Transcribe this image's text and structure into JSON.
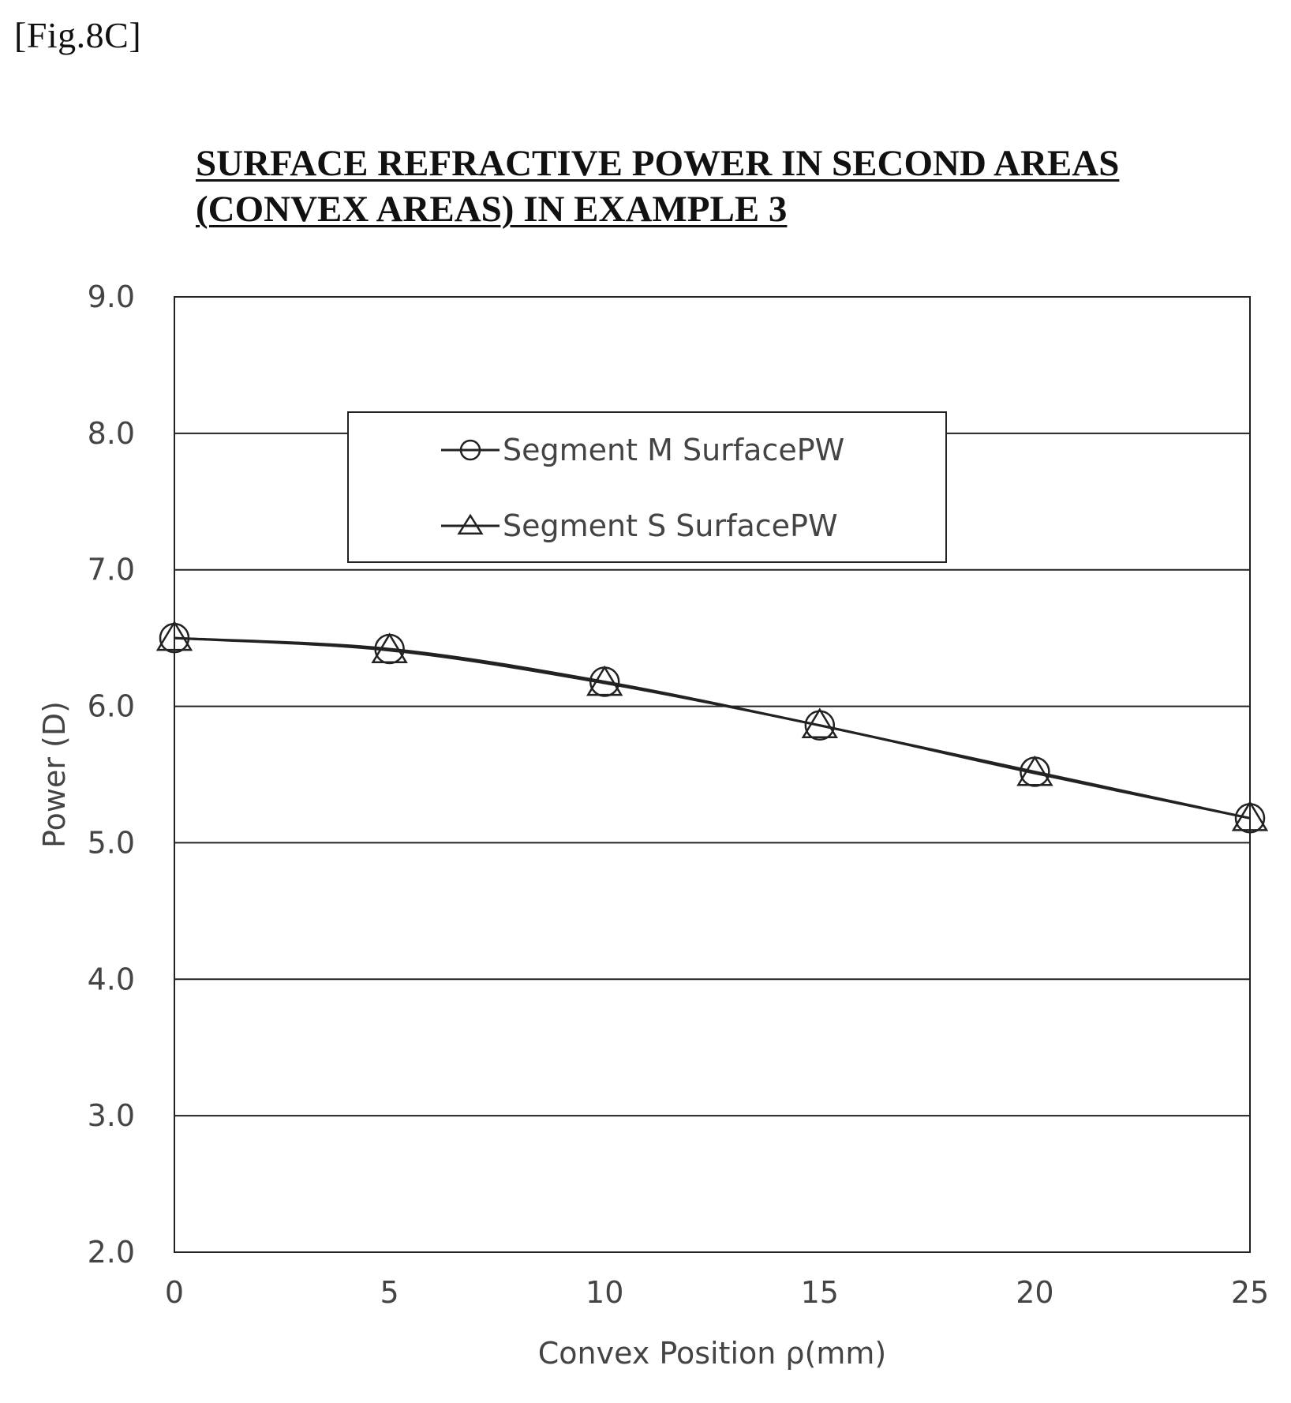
{
  "figure": {
    "label": "[Fig.8C]",
    "title_lines": [
      "SURFACE REFRACTIVE POWER IN SECOND AREAS",
      "(CONVEX AREAS) IN EXAMPLE 3"
    ]
  },
  "chart_data": {
    "type": "line",
    "title": "SURFACE REFRACTIVE POWER IN SECOND AREAS (CONVEX AREAS) IN EXAMPLE 3",
    "xlabel": "Convex Position ρ(mm)",
    "ylabel": "Power (D)",
    "x": [
      0,
      5,
      10,
      15,
      20,
      25
    ],
    "xlim": [
      0,
      25
    ],
    "ylim": [
      2.0,
      9.0
    ],
    "x_ticks": [
      "0",
      "5",
      "10",
      "15",
      "20",
      "25"
    ],
    "y_ticks": [
      "2.0",
      "3.0",
      "4.0",
      "5.0",
      "6.0",
      "7.0",
      "8.0",
      "9.0"
    ],
    "grid": "horizontal",
    "legend_position": "top-center",
    "series": [
      {
        "name": "Segment M SurfacePW",
        "marker": "circle",
        "values": [
          6.5,
          6.42,
          6.18,
          5.86,
          5.52,
          5.18
        ]
      },
      {
        "name": "Segment S SurfacePW",
        "marker": "triangle",
        "values": [
          6.5,
          6.41,
          6.17,
          5.86,
          5.51,
          5.18
        ]
      }
    ]
  }
}
